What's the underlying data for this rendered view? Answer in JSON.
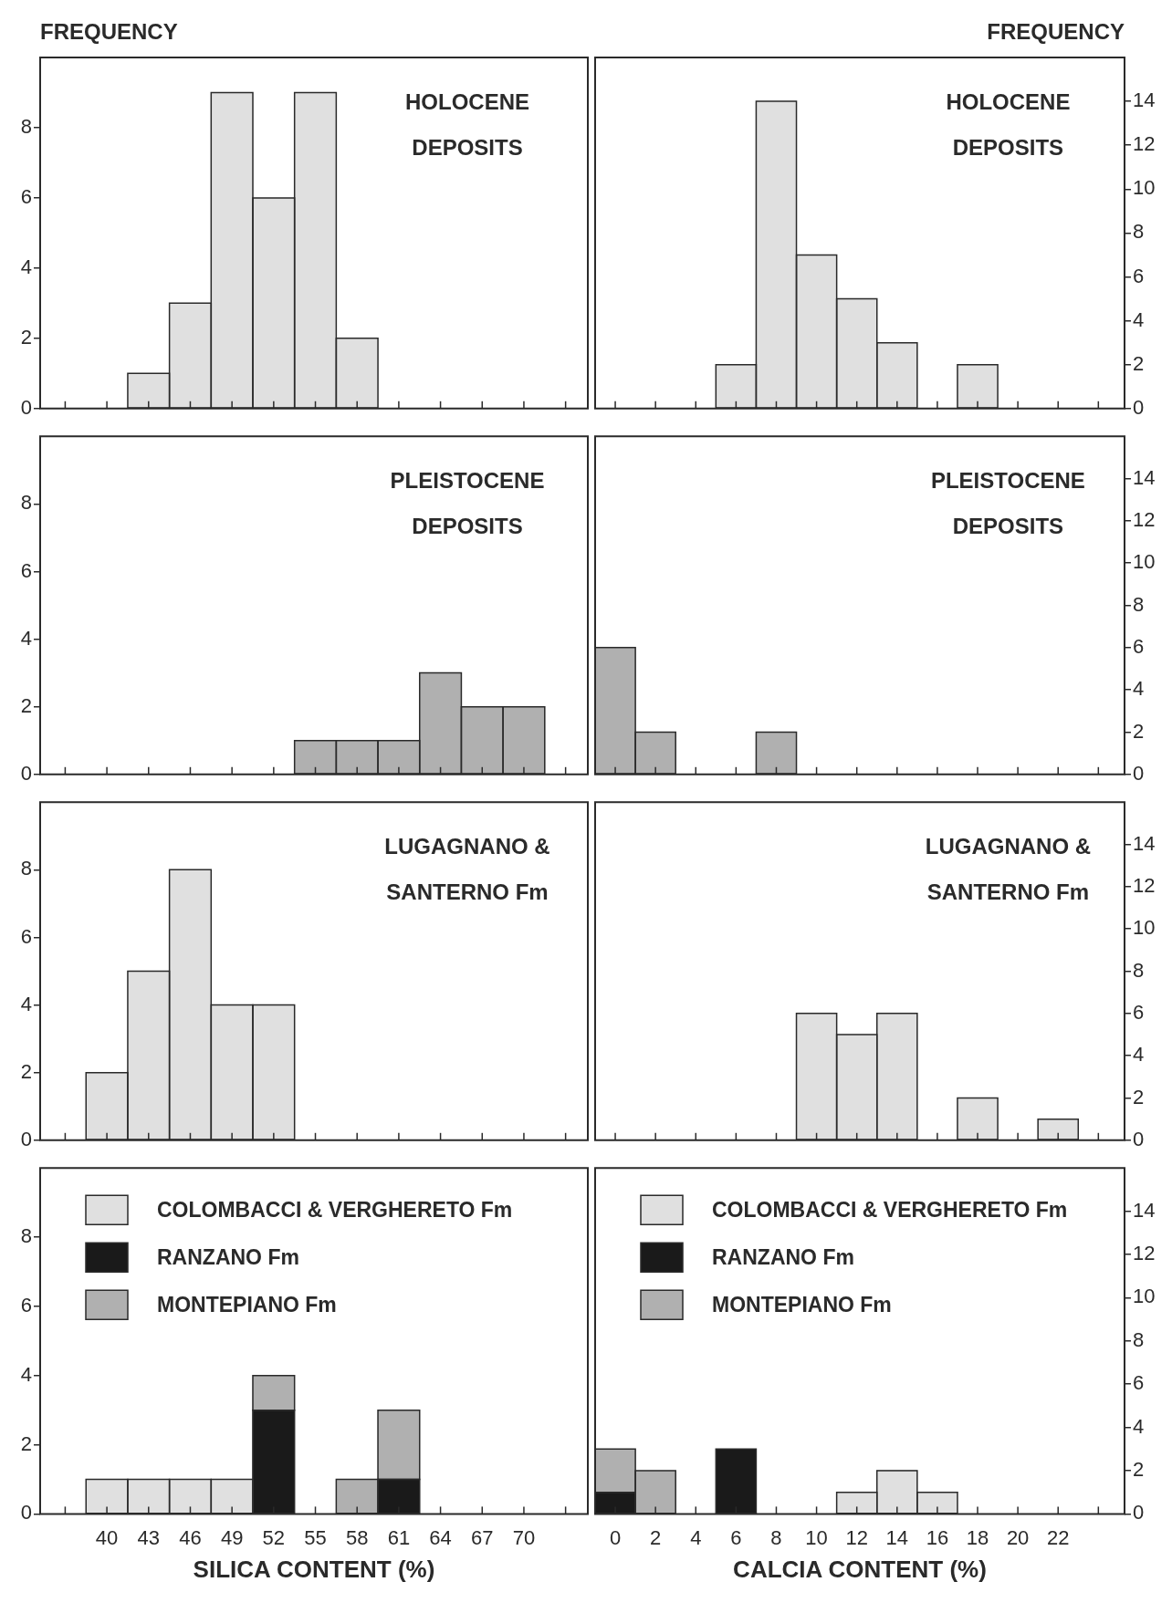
{
  "chart_data": [
    {
      "type": "histogram",
      "title": "HOLOCENE DEPOSITS",
      "ylabel": "FREQUENCY",
      "bins": [
        38.5,
        41.5,
        44.5,
        47.5,
        50.5,
        53.5,
        56.5,
        59.5,
        62.5,
        65.5,
        68.5,
        71.5
      ],
      "series": [
        {
          "color": "#e0e0e0",
          "values": [
            0,
            1,
            3,
            9,
            6,
            9,
            2,
            0,
            0,
            0,
            0
          ]
        }
      ],
      "xlim": [
        35.2,
        74.6
      ],
      "xticks": [
        {
          "value": 37,
          "label": null
        },
        {
          "value": 40,
          "label": null
        },
        {
          "value": 43,
          "label": null
        },
        {
          "value": 46,
          "label": null
        },
        {
          "value": 49,
          "label": null
        },
        {
          "value": 52,
          "label": null
        },
        {
          "value": 55,
          "label": null
        },
        {
          "value": 58,
          "label": null
        },
        {
          "value": 61,
          "label": null
        },
        {
          "value": 64,
          "label": null
        },
        {
          "value": 67,
          "label": null
        },
        {
          "value": 70,
          "label": null
        },
        {
          "value": 73,
          "label": null
        }
      ],
      "ylim": [
        0,
        10
      ],
      "yticks": [
        0,
        2,
        4,
        6,
        8
      ],
      "tick_labels": "y"
    },
    {
      "type": "histogram",
      "title": "HOLOCENE DEPOSITS",
      "y2label": "FREQUENCY",
      "bins": [
        -1,
        1,
        3,
        5,
        7,
        9,
        11,
        13,
        15,
        17,
        19,
        21,
        23
      ],
      "series": [
        {
          "color": "#e0e0e0",
          "axis": "y2",
          "values": [
            0,
            0,
            0,
            2,
            14,
            7,
            5,
            3,
            0,
            2,
            0,
            0
          ]
        }
      ],
      "xlim": [
        -1,
        25.3
      ],
      "xticks": [
        {
          "value": 0,
          "label": null
        },
        {
          "value": 2,
          "label": null
        },
        {
          "value": 4,
          "label": null
        },
        {
          "value": 6,
          "label": null
        },
        {
          "value": 8,
          "label": null
        },
        {
          "value": 10,
          "label": null
        },
        {
          "value": 12,
          "label": null
        },
        {
          "value": 14,
          "label": null
        },
        {
          "value": 16,
          "label": null
        },
        {
          "value": 18,
          "label": null
        },
        {
          "value": 20,
          "label": null
        },
        {
          "value": 22,
          "label": null
        },
        {
          "value": 24,
          "label": null
        }
      ],
      "y2lim": [
        0,
        16
      ],
      "y2ticks": [
        0,
        2,
        4,
        6,
        8,
        10,
        12,
        14
      ],
      "tick_labels": "y"
    },
    {
      "type": "histogram",
      "title": "PLEISTOCENE DEPOSITS",
      "bins": [
        38.5,
        41.5,
        44.5,
        47.5,
        50.5,
        53.5,
        56.5,
        59.5,
        62.5,
        65.5,
        68.5,
        71.5
      ],
      "series": [
        {
          "color": "#b0b0b0",
          "values": [
            0,
            0,
            0,
            0,
            0,
            1,
            1,
            1,
            3,
            2,
            2
          ]
        }
      ],
      "xlim": [
        35.2,
        74.6
      ],
      "xticks": [
        {
          "value": 37,
          "label": null
        },
        {
          "value": 40,
          "label": null
        },
        {
          "value": 43,
          "label": null
        },
        {
          "value": 46,
          "label": null
        },
        {
          "value": 49,
          "label": null
        },
        {
          "value": 52,
          "label": null
        },
        {
          "value": 55,
          "label": null
        },
        {
          "value": 58,
          "label": null
        },
        {
          "value": 61,
          "label": null
        },
        {
          "value": 64,
          "label": null
        },
        {
          "value": 67,
          "label": null
        },
        {
          "value": 70,
          "label": null
        },
        {
          "value": 73,
          "label": null
        }
      ],
      "ylim": [
        0,
        10
      ],
      "yticks": [
        0,
        2,
        4,
        6,
        8
      ],
      "tick_labels": "y"
    },
    {
      "type": "histogram",
      "title": "PLEISTOCENE DEPOSITS",
      "bins": [
        -1,
        1,
        3,
        5,
        7,
        9,
        11,
        13,
        15,
        17,
        19,
        21,
        23
      ],
      "series": [
        {
          "color": "#b0b0b0",
          "axis": "y2",
          "values": [
            6,
            2,
            0,
            0,
            2,
            0,
            0,
            0,
            0,
            0,
            0,
            0
          ]
        }
      ],
      "xlim": [
        -1,
        25.3
      ],
      "xticks": [
        {
          "value": 0,
          "label": null
        },
        {
          "value": 2,
          "label": null
        },
        {
          "value": 4,
          "label": null
        },
        {
          "value": 6,
          "label": null
        },
        {
          "value": 8,
          "label": null
        },
        {
          "value": 10,
          "label": null
        },
        {
          "value": 12,
          "label": null
        },
        {
          "value": 14,
          "label": null
        },
        {
          "value": 16,
          "label": null
        },
        {
          "value": 18,
          "label": null
        },
        {
          "value": 20,
          "label": null
        },
        {
          "value": 22,
          "label": null
        },
        {
          "value": 24,
          "label": null
        }
      ],
      "y2lim": [
        0,
        16
      ],
      "y2ticks": [
        0,
        2,
        4,
        6,
        8,
        10,
        12,
        14
      ],
      "tick_labels": "y"
    },
    {
      "type": "histogram",
      "title": "LUGAGNANO & SANTERNO Fm",
      "bins": [
        38.5,
        41.5,
        44.5,
        47.5,
        50.5,
        53.5,
        56.5,
        59.5,
        62.5,
        65.5,
        68.5,
        71.5
      ],
      "series": [
        {
          "color": "#e0e0e0",
          "values": [
            2,
            5,
            8,
            4,
            4,
            0,
            0,
            0,
            0,
            0,
            0
          ]
        }
      ],
      "xlim": [
        35.2,
        74.6
      ],
      "xticks": [
        {
          "value": 37,
          "label": null
        },
        {
          "value": 40,
          "label": null
        },
        {
          "value": 43,
          "label": null
        },
        {
          "value": 46,
          "label": null
        },
        {
          "value": 49,
          "label": null
        },
        {
          "value": 52,
          "label": null
        },
        {
          "value": 55,
          "label": null
        },
        {
          "value": 58,
          "label": null
        },
        {
          "value": 61,
          "label": null
        },
        {
          "value": 64,
          "label": null
        },
        {
          "value": 67,
          "label": null
        },
        {
          "value": 70,
          "label": null
        },
        {
          "value": 73,
          "label": null
        }
      ],
      "ylim": [
        0,
        10
      ],
      "yticks": [
        0,
        2,
        4,
        6,
        8
      ],
      "tick_labels": "y"
    },
    {
      "type": "histogram",
      "title": "LUGAGNANO & SANTERNO Fm",
      "bins": [
        -1,
        1,
        3,
        5,
        7,
        9,
        11,
        13,
        15,
        17,
        19,
        21,
        23
      ],
      "series": [
        {
          "color": "#e0e0e0",
          "axis": "y2",
          "values": [
            0,
            0,
            0,
            0,
            0,
            6,
            5,
            6,
            0,
            2,
            0,
            1
          ]
        }
      ],
      "xlim": [
        -1,
        25.3
      ],
      "xticks": [
        {
          "value": 0,
          "label": null
        },
        {
          "value": 2,
          "label": null
        },
        {
          "value": 4,
          "label": null
        },
        {
          "value": 6,
          "label": null
        },
        {
          "value": 8,
          "label": null
        },
        {
          "value": 10,
          "label": null
        },
        {
          "value": 12,
          "label": null
        },
        {
          "value": 14,
          "label": null
        },
        {
          "value": 16,
          "label": null
        },
        {
          "value": 18,
          "label": null
        },
        {
          "value": 20,
          "label": null
        },
        {
          "value": 22,
          "label": null
        },
        {
          "value": 24,
          "label": null
        }
      ],
      "y2lim": [
        0,
        16
      ],
      "y2ticks": [
        0,
        2,
        4,
        6,
        8,
        10,
        12,
        14
      ],
      "tick_labels": "y"
    },
    {
      "type": "bar",
      "xlabel": "SILICA CONTENT (%)",
      "stacked": true,
      "legend": "top left",
      "x": [
        40,
        43,
        46,
        49,
        52,
        55,
        58,
        61,
        64,
        67,
        70
      ],
      "series": [
        {
          "name": "COLOMBACCI & VERGHERETO Fm",
          "color": "#e0e0e0",
          "values": [
            1,
            1,
            1,
            1,
            0,
            0,
            0,
            0,
            0,
            0,
            0
          ]
        },
        {
          "name": "RANZANO Fm",
          "color": "#1a1a1a",
          "values": [
            0,
            0,
            0,
            0,
            3,
            0,
            0,
            1,
            0,
            0,
            0
          ]
        },
        {
          "name": "MONTEPIANO Fm",
          "color": "#b0b0b0",
          "values": [
            0,
            0,
            0,
            0,
            1,
            0,
            1,
            2,
            0,
            0,
            0
          ]
        }
      ],
      "xlim": [
        35.2,
        74.6
      ],
      "xticks": [
        {
          "value": 37,
          "label": null
        },
        40,
        43,
        46,
        49,
        52,
        55,
        58,
        61,
        64,
        67,
        70,
        {
          "value": 73,
          "label": null
        }
      ],
      "ylim": [
        0,
        10
      ],
      "yticks": [
        0,
        2,
        4,
        6,
        8
      ]
    },
    {
      "type": "bar",
      "xlabel": "CALCIA CONTENT (%)",
      "stacked": true,
      "legend": "top left",
      "x": [
        0,
        2,
        4,
        6,
        8,
        10,
        12,
        14,
        16,
        18,
        20,
        22
      ],
      "series": [
        {
          "name": "COLOMBACCI & VERGHERETO Fm",
          "color": "#e0e0e0",
          "axis": "y2",
          "values": [
            0,
            0,
            0,
            0,
            0,
            0,
            1,
            2,
            1,
            0,
            0,
            0
          ]
        },
        {
          "name": "RANZANO Fm",
          "color": "#1a1a1a",
          "axis": "y2",
          "values": [
            1,
            0,
            0,
            3,
            0,
            0,
            0,
            0,
            0,
            0,
            0,
            0
          ]
        },
        {
          "name": "MONTEPIANO Fm",
          "color": "#b0b0b0",
          "axis": "y2",
          "values": [
            2,
            2,
            0,
            0,
            0,
            0,
            0,
            0,
            0,
            0,
            0,
            0
          ]
        }
      ],
      "xlim": [
        -1,
        25.3
      ],
      "xticks": [
        0,
        2,
        4,
        6,
        8,
        10,
        12,
        14,
        16,
        18,
        20,
        22,
        {
          "value": 24,
          "label": null
        }
      ],
      "y2lim": [
        0,
        16
      ],
      "y2ticks": [
        0,
        2,
        4,
        6,
        8,
        10,
        12,
        14
      ]
    }
  ]
}
